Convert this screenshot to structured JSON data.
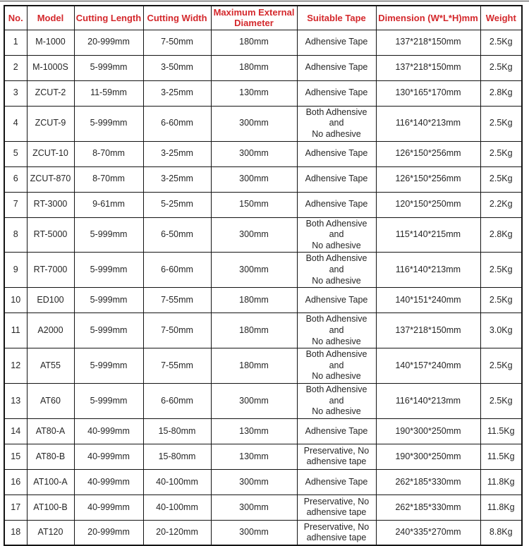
{
  "colors": {
    "header_text": "#d4282c",
    "border": "#141414",
    "cell_text": "#262626",
    "background": "#ffffff"
  },
  "table": {
    "columns": [
      {
        "key": "no",
        "label": "No."
      },
      {
        "key": "model",
        "label": "Model"
      },
      {
        "key": "cutting-length",
        "label": "Cutting Length"
      },
      {
        "key": "cutting-width",
        "label": "Cutting Width"
      },
      {
        "key": "max-external-diameter",
        "label": "Maximum External\nDiameter"
      },
      {
        "key": "suitable-tape",
        "label": "Suitable Tape"
      },
      {
        "key": "dimension",
        "label": "Dimension (W*L*H)mm"
      },
      {
        "key": "weight",
        "label": "Weight"
      }
    ],
    "rows": [
      [
        "1",
        "M-1000",
        "20-999mm",
        "7-50mm",
        "180mm",
        "Adhensive Tape",
        "137*218*150mm",
        "2.5Kg"
      ],
      [
        "2",
        "M-1000S",
        "5-999mm",
        "3-50mm",
        "180mm",
        "Adhensive Tape",
        "137*218*150mm",
        "2.5Kg"
      ],
      [
        "3",
        "ZCUT-2",
        "11-59mm",
        "3-25mm",
        "130mm",
        "Adhensive Tape",
        "130*165*170mm",
        "2.8Kg"
      ],
      [
        "4",
        "ZCUT-9",
        "5-999mm",
        "6-60mm",
        "300mm",
        "Both Adhensive and\nNo adhesive",
        "116*140*213mm",
        "2.5Kg"
      ],
      [
        "5",
        "ZCUT-10",
        "8-70mm",
        "3-25mm",
        "300mm",
        "Adhensive Tape",
        "126*150*256mm",
        "2.5Kg"
      ],
      [
        "6",
        "ZCUT-870",
        "8-70mm",
        "3-25mm",
        "300mm",
        "Adhensive Tape",
        "126*150*256mm",
        "2.5Kg"
      ],
      [
        "7",
        "RT-3000",
        "9-61mm",
        "5-25mm",
        "150mm",
        "Adhensive Tape",
        "120*150*250mm",
        "2.2Kg"
      ],
      [
        "8",
        "RT-5000",
        "5-999mm",
        "6-50mm",
        "300mm",
        "Both Adhensive and\nNo adhesive",
        "115*140*215mm",
        "2.8Kg"
      ],
      [
        "9",
        "RT-7000",
        "5-999mm",
        "6-60mm",
        "300mm",
        "Both Adhensive and\nNo adhesive",
        "116*140*213mm",
        "2.5Kg"
      ],
      [
        "10",
        "ED100",
        "5-999mm",
        "7-55mm",
        "180mm",
        "Adhensive Tape",
        "140*151*240mm",
        "2.5Kg"
      ],
      [
        "11",
        "A2000",
        "5-999mm",
        "7-50mm",
        "180mm",
        "Both Adhensive and\nNo adhesive",
        "137*218*150mm",
        "3.0Kg"
      ],
      [
        "12",
        "AT55",
        "5-999mm",
        "7-55mm",
        "180mm",
        "Both Adhensive and\nNo adhesive",
        "140*157*240mm",
        "2.5Kg"
      ],
      [
        "13",
        "AT60",
        "5-999mm",
        "6-60mm",
        "300mm",
        "Both Adhensive and\nNo adhesive",
        "116*140*213mm",
        "2.5Kg"
      ],
      [
        "14",
        "AT80-A",
        "40-999mm",
        "15-80mm",
        "130mm",
        "Adhensive Tape",
        "190*300*250mm",
        "11.5Kg"
      ],
      [
        "15",
        "AT80-B",
        "40-999mm",
        "15-80mm",
        "130mm",
        "Preservative, No\nadhensive tape",
        "190*300*250mm",
        "11.5Kg"
      ],
      [
        "16",
        "AT100-A",
        "40-999mm",
        "40-100mm",
        "300mm",
        "Adhensive Tape",
        "262*185*330mm",
        "11.8Kg"
      ],
      [
        "17",
        "AT100-B",
        "40-999mm",
        "40-100mm",
        "300mm",
        "Preservative, No\nadhensive tape",
        "262*185*330mm",
        "11.8Kg"
      ],
      [
        "18",
        "AT120",
        "20-999mm",
        "20-120mm",
        "300mm",
        "Preservative, No\nadhensive tape",
        "240*335*270mm",
        "8.8Kg"
      ]
    ]
  }
}
